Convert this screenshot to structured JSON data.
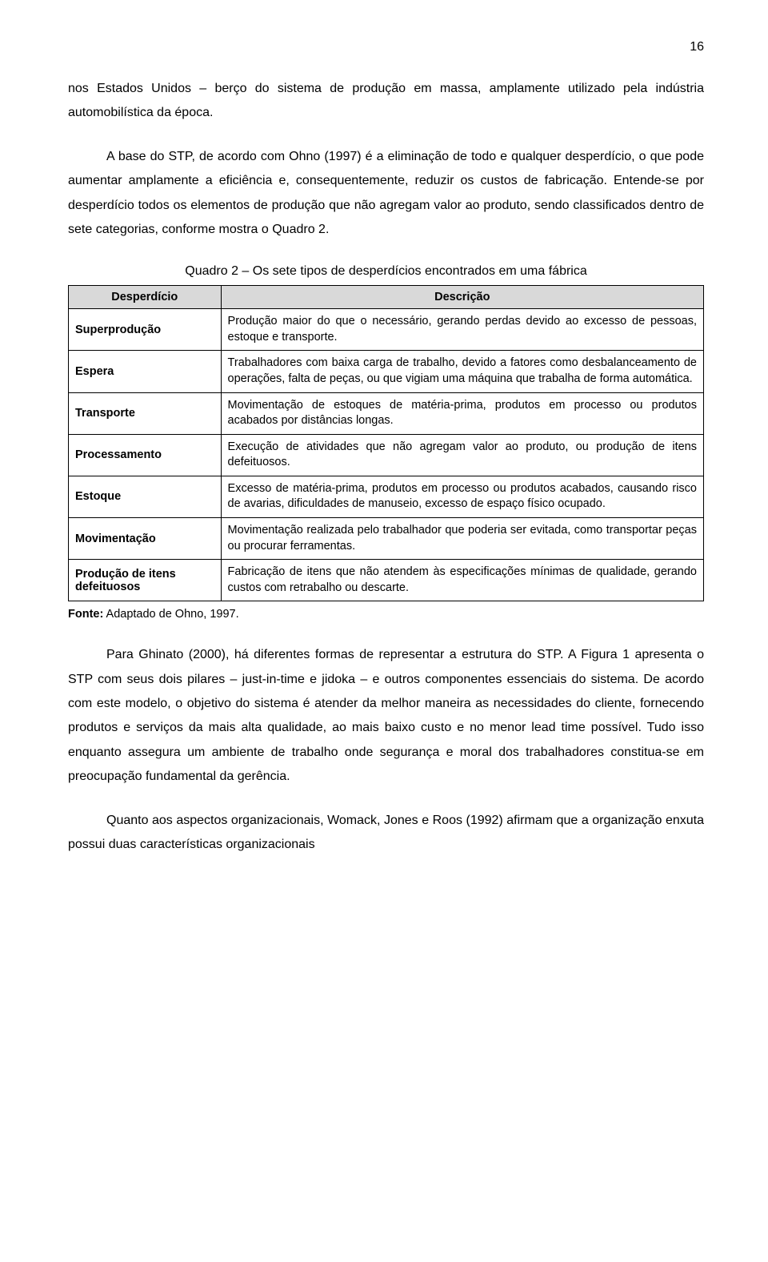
{
  "page_number": "16",
  "paragraph1": "nos Estados Unidos – berço do sistema de produção em massa, amplamente utilizado pela indústria automobilística da época.",
  "paragraph2": "A base do STP, de acordo com Ohno (1997) é a eliminação de todo e qualquer desperdício, o que pode aumentar amplamente a eficiência e, consequentemente, reduzir os custos de fabricação. Entende-se por desperdício todos os elementos de produção que não agregam valor ao produto, sendo classificados dentro de sete categorias, conforme mostra o Quadro 2.",
  "table_title": "Quadro 2 – Os sete tipos de desperdícios encontrados em uma fábrica",
  "headers": {
    "col1": "Desperdício",
    "col2": "Descrição"
  },
  "rows": [
    {
      "label": "Superprodução",
      "desc": "Produção maior do que o necessário, gerando perdas devido ao excesso de pessoas, estoque e transporte."
    },
    {
      "label": "Espera",
      "desc": "Trabalhadores com baixa carga de trabalho, devido a fatores como desbalanceamento de operações, falta de peças, ou que vigiam uma máquina que trabalha de forma automática."
    },
    {
      "label": "Transporte",
      "desc": "Movimentação de estoques de matéria-prima, produtos em processo ou produtos acabados por distâncias longas."
    },
    {
      "label": "Processamento",
      "desc": "Execução de atividades que não agregam valor ao produto, ou produção de itens defeituosos."
    },
    {
      "label": "Estoque",
      "desc": "Excesso de matéria-prima, produtos em processo ou produtos acabados, causando risco de avarias, dificuldades de manuseio, excesso de espaço físico ocupado."
    },
    {
      "label": "Movimentação",
      "desc": "Movimentação realizada pelo trabalhador que poderia ser evitada, como transportar peças ou procurar ferramentas."
    },
    {
      "label": "Produção de itens defeituosos",
      "desc": "Fabricação de itens que não atendem às especificações mínimas de qualidade, gerando custos com retrabalho ou descarte."
    }
  ],
  "source_label": "Fonte:",
  "source_text": " Adaptado de Ohno, 1997.",
  "paragraph3": "Para Ghinato (2000), há diferentes formas de representar a estrutura do STP. A Figura 1 apresenta o STP com seus dois pilares – just-in-time e jidoka – e outros componentes essenciais do sistema. De acordo com este modelo, o objetivo do sistema é atender da melhor maneira as necessidades do cliente, fornecendo produtos e serviços da mais alta qualidade, ao mais baixo custo e no menor lead time possível. Tudo isso enquanto assegura um ambiente de trabalho onde segurança e moral dos trabalhadores constitua-se em preocupação fundamental da gerência.",
  "paragraph4": "Quanto aos aspectos organizacionais, Womack, Jones e Roos (1992) afirmam que a organização enxuta possui duas características organizacionais"
}
